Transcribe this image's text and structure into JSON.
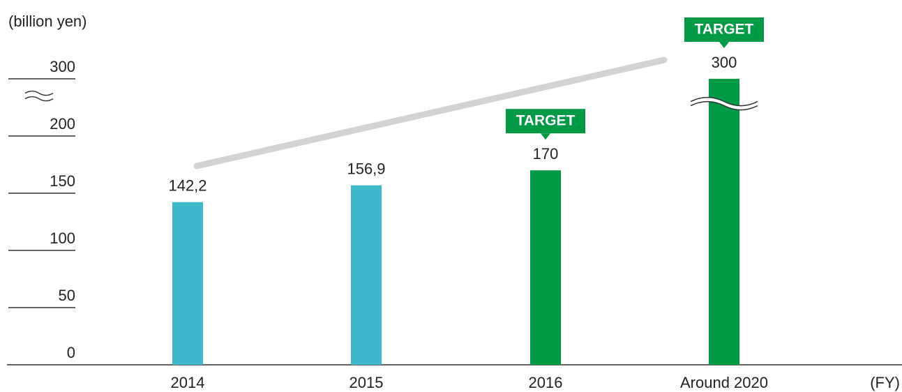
{
  "chart_data": {
    "type": "bar",
    "unit_label": "(billion yen)",
    "x_unit_label": "(FY)",
    "categories": [
      "2014",
      "2015",
      "2016",
      "Around 2020"
    ],
    "values": [
      142.2,
      156.9,
      170,
      300
    ],
    "value_labels": [
      "142,2",
      "156,9",
      "170",
      "300"
    ],
    "colors": [
      "#3db9c9",
      "#3db9c9",
      "#009a44",
      "#009a44"
    ],
    "badges": [
      null,
      null,
      "TARGET",
      "TARGET"
    ],
    "badge_color": "#009a44",
    "ylim": [
      0,
      300
    ],
    "yticks": [
      0,
      50,
      100,
      150,
      200,
      300
    ],
    "y_axis_break": true
  }
}
